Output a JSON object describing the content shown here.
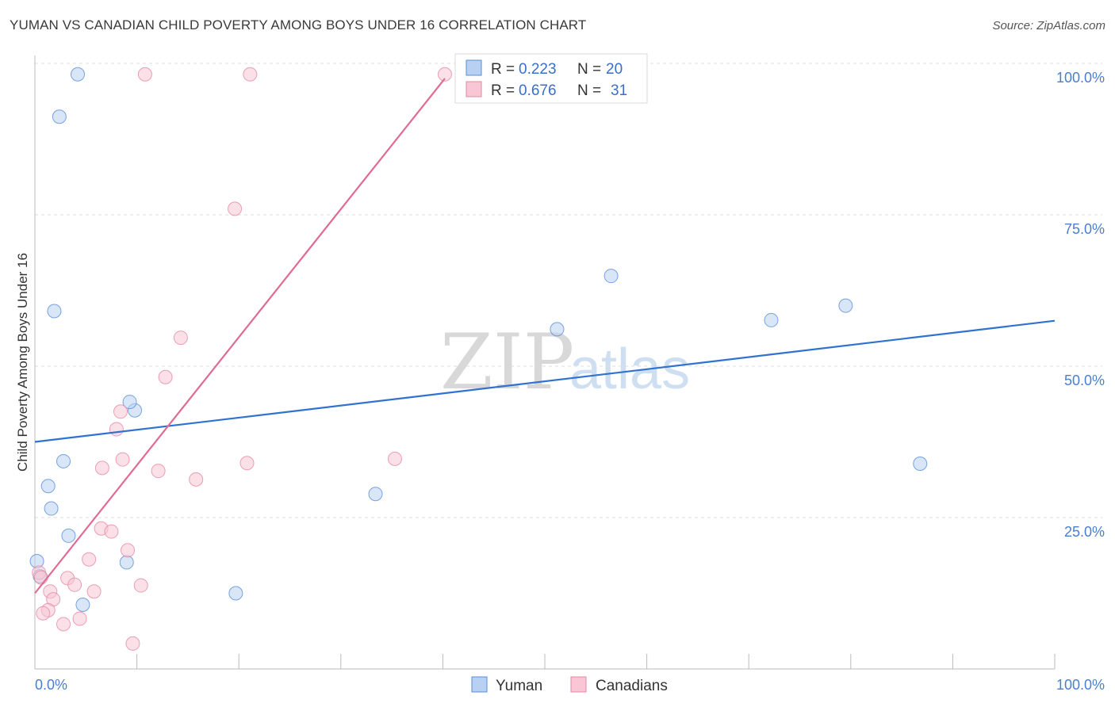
{
  "header": {
    "title": "YUMAN VS CANADIAN CHILD POVERTY AMONG BOYS UNDER 16 CORRELATION CHART",
    "source": "Source: ZipAtlas.com"
  },
  "watermark": {
    "zip": "ZIP",
    "atlas": "atlas"
  },
  "colors": {
    "yuman_fill": "#b8d1f3",
    "yuman_stroke": "#5a8fd6",
    "yuman_line": "#2f72cf",
    "canadian_fill": "#f8c6d4",
    "canadian_stroke": "#e58aa5",
    "canadian_line": "#e06b92",
    "grid": "#dcdcdc",
    "axis_label": "#4a7fd0"
  },
  "legend": {
    "rows": [
      {
        "r_label": "R =",
        "r_value": "0.223",
        "n_label": "N =",
        "n_value": "20"
      },
      {
        "r_label": "R =",
        "r_value": "0.676",
        "n_label": "N =",
        "n_value": "31"
      }
    ]
  },
  "chart_data": {
    "type": "scatter",
    "title": "YUMAN VS CANADIAN CHILD POVERTY AMONG BOYS UNDER 16 CORRELATION CHART",
    "xlabel": "",
    "ylabel": "Child Poverty Among Boys Under 16",
    "xlim": [
      0,
      100
    ],
    "ylim": [
      0,
      100
    ],
    "x_tick_labels": [
      "0.0%",
      "100.0%"
    ],
    "y_ticks": [
      25,
      50,
      75,
      100
    ],
    "y_tick_labels": [
      "25.0%",
      "50.0%",
      "75.0%",
      "100.0%"
    ],
    "grid": true,
    "legend_position": "top-center",
    "series": [
      {
        "name": "Yuman",
        "r": 0.223,
        "n": 20,
        "trend": {
          "x": [
            0,
            100
          ],
          "y": [
            37.5,
            57.5
          ]
        },
        "points": [
          [
            4.2,
            98.2
          ],
          [
            2.4,
            91.2
          ],
          [
            1.9,
            59.1
          ],
          [
            2.8,
            34.3
          ],
          [
            1.3,
            30.2
          ],
          [
            1.6,
            26.5
          ],
          [
            3.3,
            22.0
          ],
          [
            0.2,
            17.8
          ],
          [
            0.5,
            15.3
          ],
          [
            4.7,
            10.6
          ],
          [
            9.8,
            42.7
          ],
          [
            9.3,
            44.1
          ],
          [
            9.0,
            17.6
          ],
          [
            19.7,
            12.5
          ],
          [
            33.4,
            28.9
          ],
          [
            51.2,
            56.1
          ],
          [
            56.5,
            64.9
          ],
          [
            72.2,
            57.6
          ],
          [
            79.5,
            60.0
          ],
          [
            86.8,
            33.9
          ]
        ]
      },
      {
        "name": "Canadians",
        "r": 0.676,
        "n": 31,
        "trend": {
          "x": [
            0,
            40.2
          ],
          "y": [
            12.5,
            97.5
          ]
        },
        "points": [
          [
            10.8,
            98.2
          ],
          [
            21.1,
            98.2
          ],
          [
            40.2,
            98.2
          ],
          [
            19.6,
            76.0
          ],
          [
            14.3,
            54.7
          ],
          [
            12.8,
            48.2
          ],
          [
            8.4,
            42.5
          ],
          [
            8.0,
            39.6
          ],
          [
            8.6,
            34.6
          ],
          [
            6.6,
            33.2
          ],
          [
            12.1,
            32.7
          ],
          [
            15.8,
            31.3
          ],
          [
            20.8,
            34.0
          ],
          [
            35.3,
            34.7
          ],
          [
            6.5,
            23.2
          ],
          [
            7.5,
            22.7
          ],
          [
            9.1,
            19.6
          ],
          [
            5.3,
            18.1
          ],
          [
            0.4,
            15.9
          ],
          [
            0.6,
            15.1
          ],
          [
            3.2,
            15.0
          ],
          [
            3.9,
            13.9
          ],
          [
            1.5,
            12.8
          ],
          [
            5.8,
            12.8
          ],
          [
            10.4,
            13.8
          ],
          [
            1.8,
            11.5
          ],
          [
            1.3,
            9.7
          ],
          [
            0.8,
            9.2
          ],
          [
            4.4,
            8.3
          ],
          [
            2.8,
            7.4
          ],
          [
            9.6,
            4.2
          ]
        ]
      }
    ]
  }
}
